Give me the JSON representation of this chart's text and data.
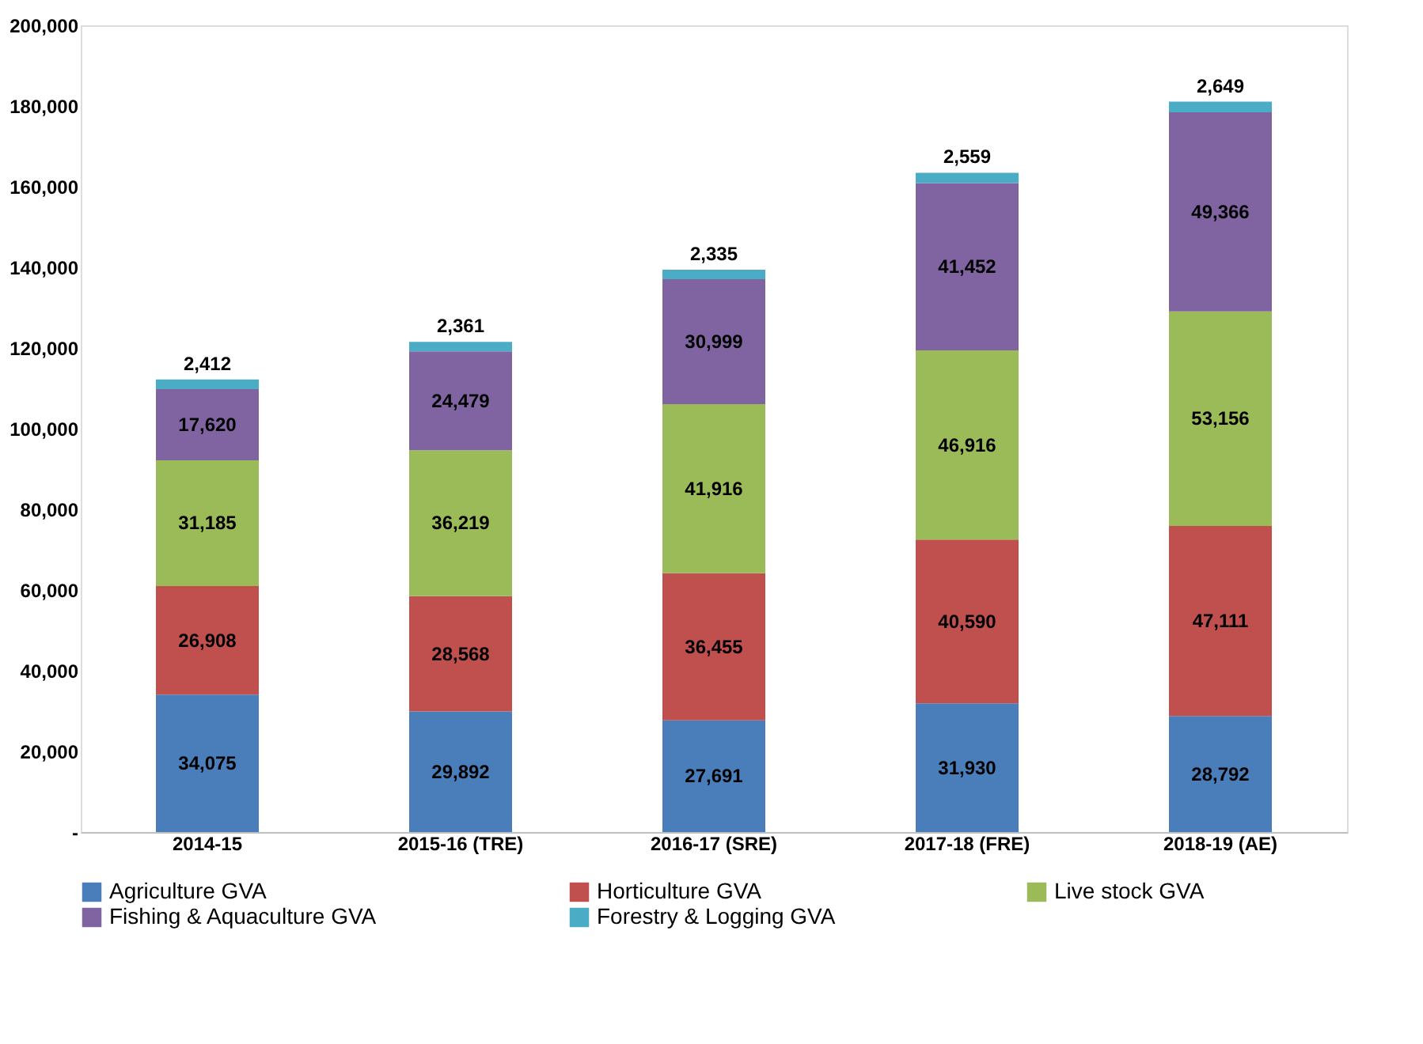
{
  "chart_data": {
    "type": "bar",
    "stacked": true,
    "categories": [
      "2014-15",
      "2015-16 (TRE)",
      "2016-17 (SRE)",
      "2017-18 (FRE)",
      "2018-19 (AE)"
    ],
    "series": [
      {
        "name": "Agriculture GVA",
        "color": "#4a7ebb",
        "values": [
          34075,
          29892,
          27691,
          31930,
          28792
        ],
        "value_labels": [
          "34,075",
          "29,892",
          "27,691",
          "31,930",
          "28,792"
        ]
      },
      {
        "name": "Horticulture GVA",
        "color": "#c0504d",
        "values": [
          26908,
          28568,
          36455,
          40590,
          47111
        ],
        "value_labels": [
          "26,908",
          "28,568",
          "36,455",
          "40,590",
          "47,111"
        ]
      },
      {
        "name": "Live stock GVA",
        "color": "#9bbb59",
        "values": [
          31185,
          36219,
          41916,
          46916,
          53156
        ],
        "value_labels": [
          "31,185",
          "36,219",
          "41,916",
          "46,916",
          "53,156"
        ]
      },
      {
        "name": "Fishing & Aquaculture GVA",
        "color": "#8064a2",
        "values": [
          17620,
          24479,
          30999,
          41452,
          49366
        ],
        "value_labels": [
          "17,620",
          "24,479",
          "30,999",
          "41,452",
          "49,366"
        ]
      },
      {
        "name": "Forestry & Logging GVA",
        "color": "#4bacc6",
        "values": [
          2412,
          2361,
          2335,
          2559,
          2649
        ],
        "value_labels": [
          "2,412",
          "2,361",
          "2,335",
          "2,559",
          "2,649"
        ]
      }
    ],
    "ylim": [
      0,
      200000
    ],
    "yticks": [
      {
        "value": 0,
        "label": "-"
      },
      {
        "value": 20000,
        "label": "20,000"
      },
      {
        "value": 40000,
        "label": "40,000"
      },
      {
        "value": 60000,
        "label": "60,000"
      },
      {
        "value": 80000,
        "label": "80,000"
      },
      {
        "value": 100000,
        "label": "100,000"
      },
      {
        "value": 120000,
        "label": "120,000"
      },
      {
        "value": 140000,
        "label": "140,000"
      },
      {
        "value": 160000,
        "label": "160,000"
      },
      {
        "value": 180000,
        "label": "180,000"
      },
      {
        "value": 200000,
        "label": "200,000"
      }
    ],
    "grid": false,
    "legend": "bottom"
  }
}
